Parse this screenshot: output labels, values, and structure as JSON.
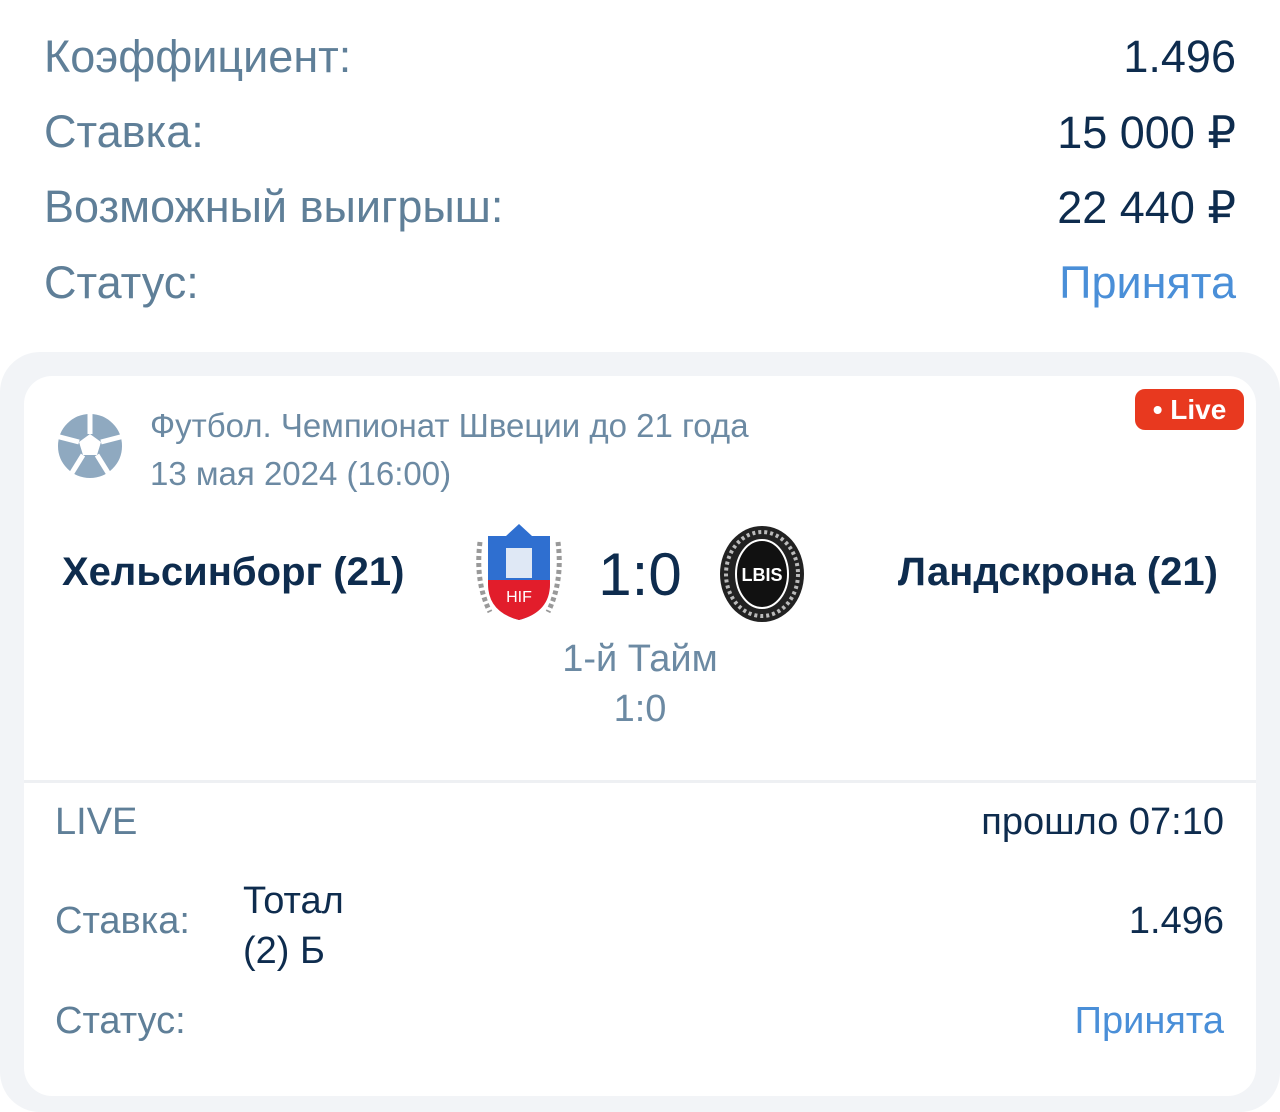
{
  "summary": {
    "rows": [
      {
        "label": "Коэффициент:",
        "value": "1.496"
      },
      {
        "label": "Ставка:",
        "value": "15 000 ₽"
      },
      {
        "label": "Возможный выигрыш:",
        "value": "22 440 ₽"
      },
      {
        "label": "Статус:",
        "value": "Принята"
      }
    ]
  },
  "event": {
    "sport_icon": "soccer-ball-icon",
    "league": "Футбол. Чемпионат Швеции до 21 года",
    "date": "13 мая 2024 (16:00)",
    "live_badge": "• Live",
    "home_team": "Хельсинборг (21)",
    "home_logo_text": "HIF",
    "away_team": "Ландскрона (21)",
    "away_logo_text": "LBIS",
    "score": "1:0",
    "period": "1-й Тайм",
    "period_score": "1:0"
  },
  "bet": {
    "mode": "LIVE",
    "elapsed": "прошло 07:10",
    "stake_label": "Ставка:",
    "market_line1": "Тотал",
    "market_line2": "(2) Б",
    "odds": "1.496",
    "status_label": "Статус:",
    "status": "Принята"
  },
  "colors": {
    "label": "#5f7f98",
    "value": "#0e2c4e",
    "accent": "#4a8fd8",
    "live": "#e8391f"
  }
}
